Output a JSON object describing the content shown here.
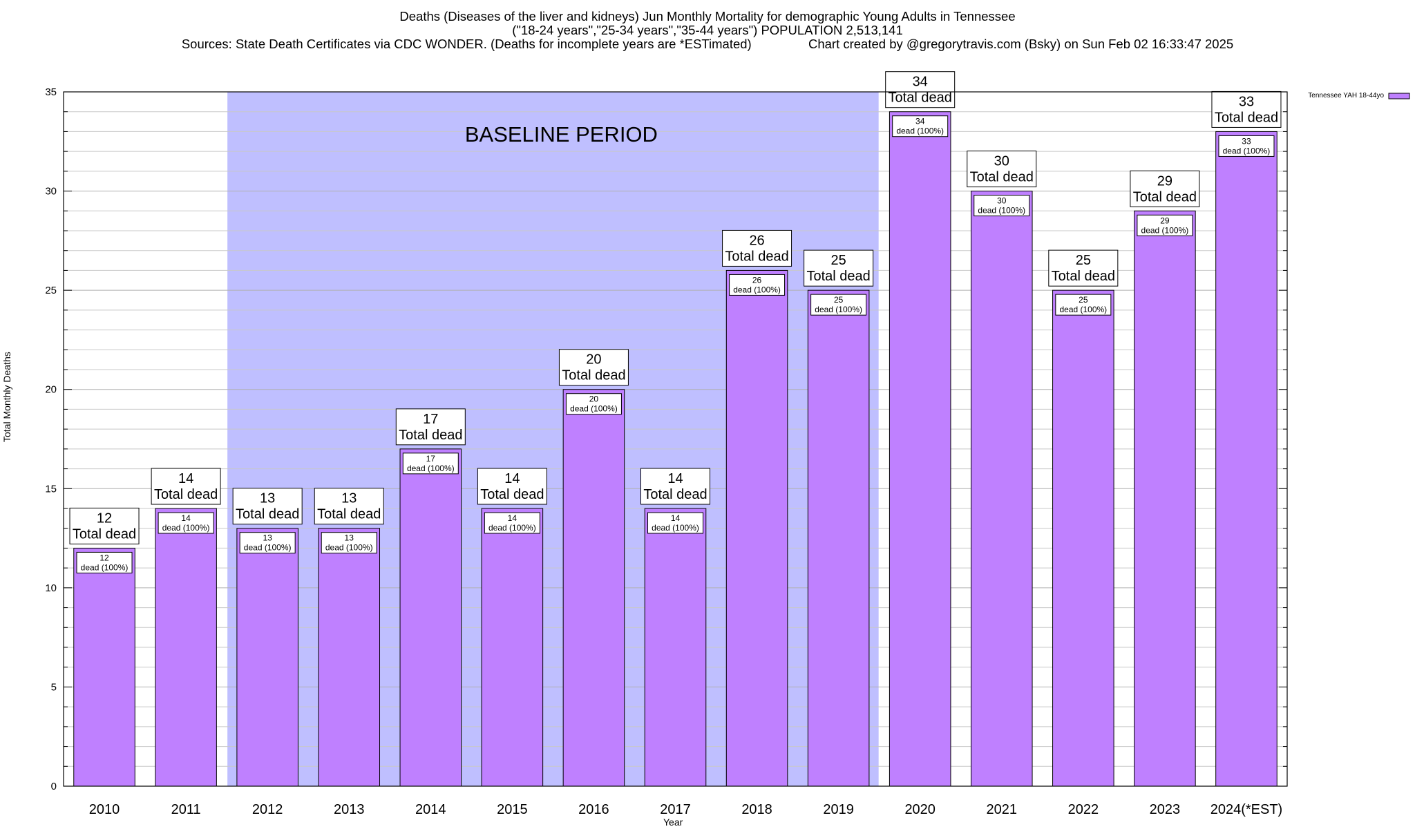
{
  "title": {
    "line1": "Deaths (Diseases of the liver and kidneys) Jun Monthly Mortality for demographic Young Adults in Tennessee",
    "line2": "(\"18-24 years\",\"25-34 years\",\"35-44 years\") POPULATION 2,513,141",
    "line3_left": "Sources: State Death Certificates via CDC WONDER. (Deaths for incomplete years are *ESTimated)",
    "line3_right": "Chart created by @gregorytravis.com (Bsky) on Sun Feb 02 16:33:47 2025"
  },
  "colors": {
    "bar": "#bf80ff",
    "baseline": "#bfbfff",
    "grid": "#c8c8c8"
  },
  "chart_data": {
    "type": "bar",
    "categories": [
      "2010",
      "2011",
      "2012",
      "2013",
      "2014",
      "2015",
      "2016",
      "2017",
      "2018",
      "2019",
      "2020",
      "2021",
      "2022",
      "2023",
      "2024(*EST)"
    ],
    "series": [
      {
        "name": "Tennessee YAH 18-44yo",
        "values": [
          12,
          14,
          13,
          13,
          17,
          14,
          20,
          14,
          26,
          25,
          34,
          30,
          25,
          29,
          33
        ]
      }
    ],
    "top_label_suffix": "Total dead",
    "inner_label_suffix": "dead (100%)",
    "xlabel": "Year",
    "ylabel": "Total Monthly Deaths",
    "ylim": [
      0,
      35
    ],
    "yticks": [
      0,
      5,
      10,
      15,
      20,
      25,
      30,
      35
    ],
    "baseline_period": {
      "label": "BASELINE PERIOD",
      "from": "2012",
      "to": "2019"
    },
    "legend_position": "top-right",
    "grid": true
  }
}
